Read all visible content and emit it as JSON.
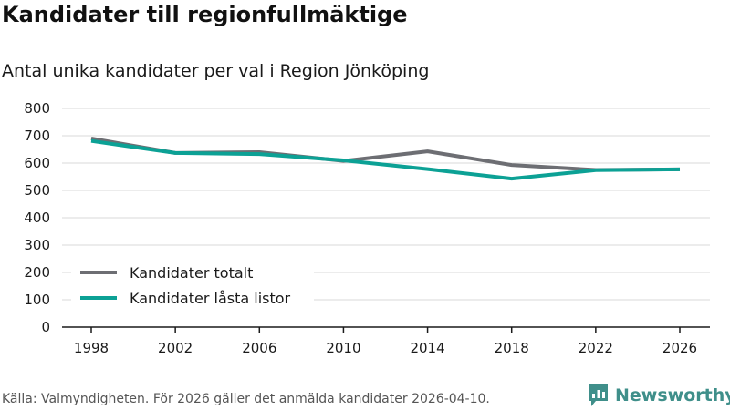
{
  "header": {
    "title": "Kandidater till regionfullmäktige",
    "subtitle": "Antal unika kandidater per val i Region Jönköping"
  },
  "footer": {
    "source": "Källa: Valmyndigheten. För 2026 gäller det anmälda kandidater 2026-04-10.",
    "brand": "Newsworthy"
  },
  "colors": {
    "series_total": "#6d6e73",
    "series_locked": "#0ca195",
    "grid": "#d9d9d9",
    "axis": "#1a1a1a",
    "brand": "#3f8f8a"
  },
  "icons": {
    "brand_logo": "newsworthy-logo-icon"
  },
  "chart_data": {
    "type": "line",
    "title": "Antal unika kandidater per val i Region Jönköping",
    "xlabel": "",
    "ylabel": "",
    "x": [
      "1998",
      "2002",
      "2006",
      "2010",
      "2014",
      "2018",
      "2022",
      "2026"
    ],
    "ylim": [
      0,
      800
    ],
    "yticks": [
      "0",
      "100",
      "200",
      "300",
      "400",
      "500",
      "600",
      "700",
      "800"
    ],
    "grid": true,
    "legend_position": "bottom-left",
    "series": [
      {
        "name": "Kandidater totalt",
        "values": [
          690,
          637,
          640,
          608,
          643,
          593,
          575,
          577
        ]
      },
      {
        "name": "Kandidater låsta listor",
        "values": [
          681,
          637,
          633,
          610,
          578,
          543,
          574,
          577
        ]
      }
    ]
  }
}
